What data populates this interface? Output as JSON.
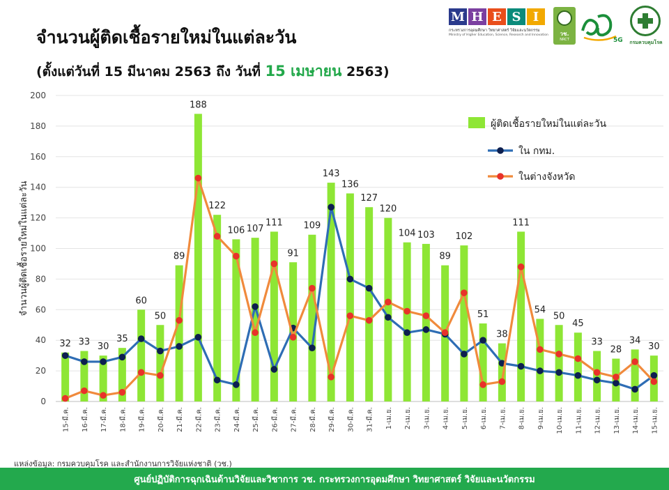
{
  "header": {
    "title": "จำนวนผู้ติดเชื้อรายใหม่ในแต่ละวัน",
    "subtitle_prefix": "(ตั้งแต่วันที่ 15 มีนาคม 2563 ถึง วันที่",
    "subtitle_highlight": "15 เมษายน",
    "subtitle_suffix": "2563)"
  },
  "logos": {
    "mhesi_letters": [
      "M",
      "H",
      "E",
      "S",
      "I"
    ],
    "mhesi_colors": [
      "#2a3a8c",
      "#7b3fa0",
      "#e94e1b",
      "#0a8a7a",
      "#f2a900"
    ],
    "mhesi_tagline_th": "กระทรวงการอุดมศึกษา วิทยาศาสตร์ วิจัยและนวัตกรรม",
    "mhesi_tagline_en": "Ministry of Higher Education, Science, Research and Innovation",
    "nrct_text": "วช.",
    "nrct_sub": "NRCT",
    "anniv_text": "5G",
    "ddc_label": "กรมควบคุมโรค"
  },
  "chart_data": {
    "type": "bar",
    "categories": [
      "15-มี.ค.",
      "16-มี.ค.",
      "17-มี.ค.",
      "18-มี.ค.",
      "19-มี.ค.",
      "20-มี.ค.",
      "21-มี.ค.",
      "22-มี.ค.",
      "23-มี.ค.",
      "24-มี.ค.",
      "25-มี.ค.",
      "26-มี.ค.",
      "27-มี.ค.",
      "28-มี.ค.",
      "29-มี.ค.",
      "30-มี.ค.",
      "31-มี.ค.",
      "1-เม.ย.",
      "2-เม.ย.",
      "3-เม.ย.",
      "4-เม.ย.",
      "5-เม.ย.",
      "6-เม.ย.",
      "7-เม.ย.",
      "8-เม.ย.",
      "9-เม.ย.",
      "10-เม.ย.",
      "11-เม.ย.",
      "12-เม.ย.",
      "13-เม.ย.",
      "14-เม.ย.",
      "15-เม.ย."
    ],
    "series": [
      {
        "name": "ผู้ติดเชื้อรายใหม่ในแต่ละวัน",
        "type": "bar",
        "color": "#8ee635",
        "values": [
          32,
          33,
          30,
          35,
          60,
          50,
          89,
          188,
          122,
          106,
          107,
          111,
          91,
          109,
          143,
          136,
          127,
          120,
          104,
          103,
          89,
          102,
          51,
          38,
          111,
          54,
          50,
          45,
          33,
          28,
          34,
          30
        ]
      },
      {
        "name": "ใน กทม.",
        "type": "line",
        "color": "#2e6db4",
        "marker_color": "#0d1f4f",
        "values": [
          30,
          26,
          26,
          29,
          41,
          33,
          36,
          42,
          14,
          11,
          62,
          21,
          48,
          35,
          127,
          80,
          74,
          55,
          45,
          47,
          44,
          31,
          40,
          25,
          23,
          20,
          19,
          17,
          14,
          12,
          8,
          17
        ]
      },
      {
        "name": "ในต่างจังหวัด",
        "type": "line",
        "color": "#f08a3c",
        "marker_color": "#e8322a",
        "values": [
          2,
          7,
          4,
          6,
          19,
          17,
          53,
          146,
          108,
          95,
          45,
          90,
          42,
          74,
          16,
          56,
          53,
          65,
          59,
          56,
          45,
          71,
          11,
          13,
          88,
          34,
          31,
          28,
          19,
          16,
          26,
          13
        ]
      }
    ],
    "ylabel": "จำนวนผู้ติดเชื้อรายใหม่ในแต่ละวัน",
    "xlabel": "",
    "ylim": [
      0,
      200
    ],
    "yticks": [
      0,
      20,
      40,
      60,
      80,
      100,
      120,
      140,
      160,
      180,
      200
    ],
    "grid": true,
    "legend_position": "top-right"
  },
  "source_text": "แหล่งข้อมูล: กรมควบคุมโรค และสำนักงานการวิจัยแห่งชาติ (วช.)",
  "footer_text": "ศูนย์ปฏิบัติการฉุกเฉินด้านวิจัยและวิชาการ   วช.   กระทรวงการอุดมศึกษา วิทยาศาสตร์ วิจัยและนวัตกรรม"
}
